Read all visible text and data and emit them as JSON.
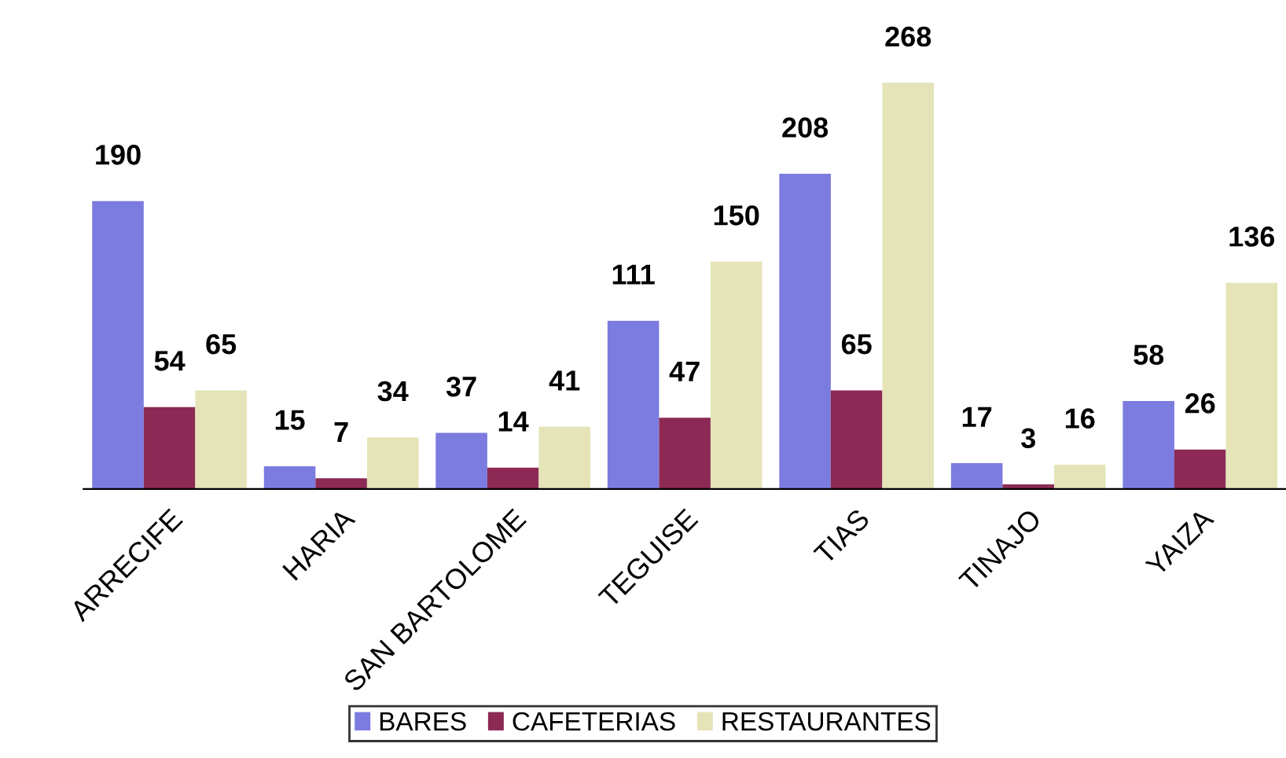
{
  "chart_data": {
    "type": "bar",
    "categories": [
      "ARRECIFE",
      "HARIA",
      "SAN BARTOLOME",
      "TEGUISE",
      "TIAS",
      "TINAJO",
      "YAIZA"
    ],
    "series": [
      {
        "name": "BARES",
        "color": "#7b7be0",
        "values": [
          190,
          15,
          37,
          111,
          208,
          17,
          58
        ]
      },
      {
        "name": "CAFETERIAS",
        "color": "#8c2a55",
        "values": [
          54,
          7,
          14,
          47,
          65,
          3,
          26
        ]
      },
      {
        "name": "RESTAURANTES",
        "color": "#e4e4b8",
        "values": [
          65,
          34,
          41,
          150,
          268,
          16,
          136
        ]
      }
    ],
    "data_labels": true,
    "legend": "bottom",
    "grid": false
  }
}
